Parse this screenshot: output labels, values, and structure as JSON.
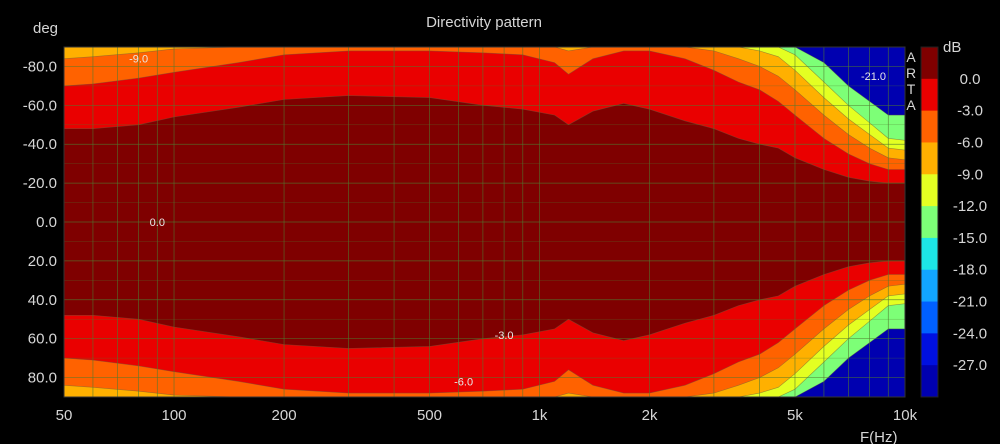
{
  "chart_data": {
    "type": "heatmap",
    "title": "Directivity pattern",
    "xlabel": "F(Hz)",
    "ylabel": "deg",
    "x_scale": "log",
    "xlim": [
      50,
      10000
    ],
    "ylim": [
      -90,
      90
    ],
    "x_ticks": [
      "50",
      "100",
      "200",
      "500",
      "1k",
      "2k",
      "5k",
      "10k"
    ],
    "x_tick_values": [
      50,
      100,
      200,
      500,
      1000,
      2000,
      5000,
      10000
    ],
    "y_ticks": [
      "-80.0",
      "-60.0",
      "-40.0",
      "-20.0",
      "0.0",
      "20.0",
      "40.0",
      "60.0",
      "80.0"
    ],
    "y_tick_values": [
      -80,
      -60,
      -40,
      -20,
      0,
      20,
      40,
      60,
      80
    ],
    "colorbar": {
      "title": "dB",
      "levels": [
        "0.0",
        "-3.0",
        "-6.0",
        "-9.0",
        "-12.0",
        "-15.0",
        "-18.0",
        "-21.0",
        "-24.0",
        "-27.0"
      ],
      "level_values": [
        0,
        -3,
        -6,
        -9,
        -12,
        -15,
        -18,
        -21,
        -24,
        -27
      ],
      "colors": [
        "#7f0000",
        "#ea0000",
        "#ff6200",
        "#ffb000",
        "#e4ff22",
        "#7dff77",
        "#1de6e6",
        "#12a6ff",
        "#0060ff",
        "#0010e0",
        "#0000b0"
      ]
    },
    "contour_bands": {
      "frequencies": [
        50,
        60,
        80,
        100,
        150,
        200,
        300,
        500,
        700,
        900,
        1100,
        1200,
        1400,
        1700,
        2000,
        2500,
        3000,
        3500,
        4000,
        4500,
        5000,
        6000,
        7000,
        8000,
        9000,
        10000
      ],
      "boundaries_deg": [
        {
          "level": -3,
          "angle": [
            48,
            48,
            50,
            54,
            59,
            63,
            65,
            64,
            60,
            58,
            55,
            50,
            57,
            61,
            58,
            52,
            48,
            43,
            40,
            38,
            33,
            27,
            23,
            21,
            20,
            20
          ]
        },
        {
          "level": -6,
          "angle": [
            70,
            71,
            74,
            77,
            82,
            86,
            88,
            88,
            87,
            86,
            82,
            76,
            84,
            88,
            88,
            84,
            78,
            72,
            68,
            62,
            55,
            43,
            35,
            30,
            27,
            27
          ]
        },
        {
          "level": -9,
          "angle": [
            84,
            85,
            87,
            89,
            90,
            90,
            90,
            90,
            90,
            90,
            90,
            88,
            90,
            90,
            90,
            90,
            88,
            84,
            80,
            75,
            68,
            55,
            45,
            38,
            33,
            32
          ]
        },
        {
          "level": -12,
          "angle": [
            90,
            90,
            90,
            90,
            90,
            90,
            90,
            90,
            90,
            90,
            90,
            90,
            90,
            90,
            90,
            90,
            90,
            90,
            88,
            85,
            78,
            64,
            53,
            45,
            38,
            37
          ]
        },
        {
          "level": -15,
          "angle": [
            90,
            90,
            90,
            90,
            90,
            90,
            90,
            90,
            90,
            90,
            90,
            90,
            90,
            90,
            90,
            90,
            90,
            90,
            90,
            90,
            86,
            72,
            60,
            51,
            43,
            42
          ]
        },
        {
          "level": -18,
          "angle": [
            90,
            90,
            90,
            90,
            90,
            90,
            90,
            90,
            90,
            90,
            90,
            90,
            90,
            90,
            90,
            90,
            90,
            90,
            90,
            90,
            90,
            82,
            70,
            62,
            55,
            55
          ]
        }
      ]
    },
    "contour_labels": [
      {
        "text": "-9.0",
        "freq": 80,
        "deg": -84
      },
      {
        "text": "0.0",
        "freq": 90,
        "deg": 0
      },
      {
        "text": "-3.0",
        "freq": 800,
        "deg": 58
      },
      {
        "text": "-6.0",
        "freq": 620,
        "deg": 82
      },
      {
        "text": "-21.0",
        "freq": 8200,
        "deg": -75
      }
    ],
    "watermark": [
      "A",
      "R",
      "T",
      "A"
    ],
    "grid": true
  }
}
